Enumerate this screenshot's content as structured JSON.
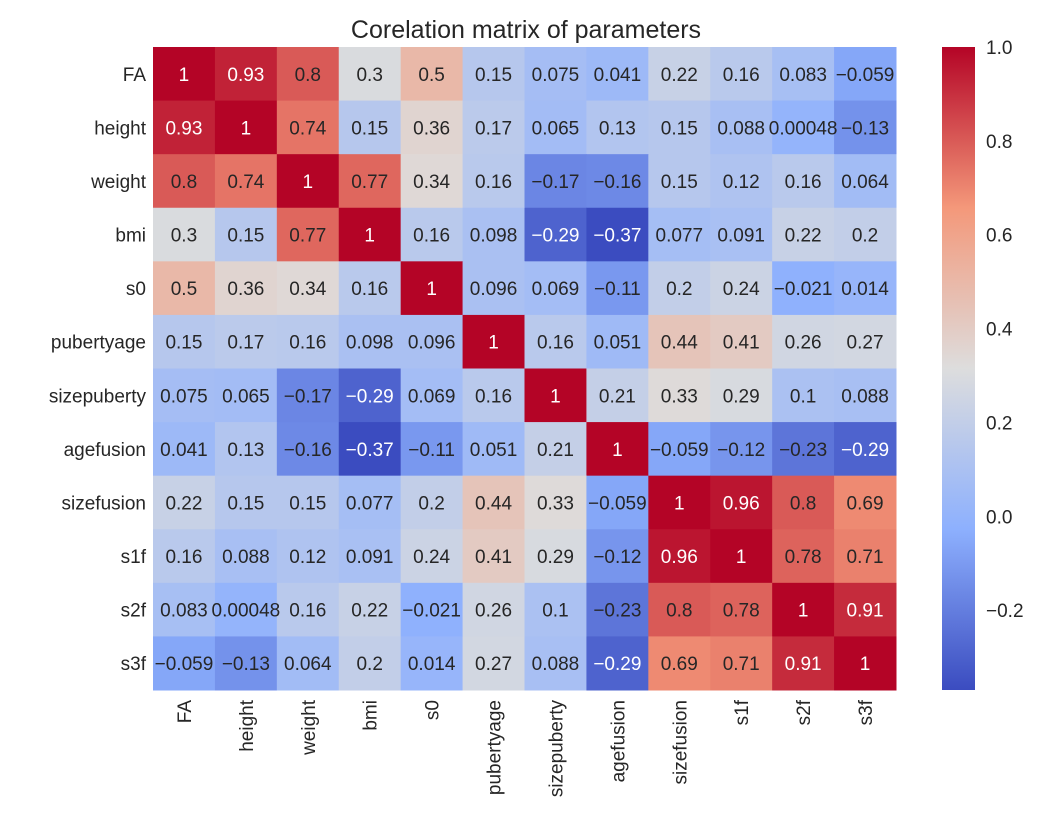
{
  "chart_data": {
    "type": "heatmap",
    "title": "Corelation matrix of parameters",
    "labels": [
      "FA",
      "height",
      "weight",
      "bmi",
      "s0",
      "pubertyage",
      "sizepuberty",
      "agefusion",
      "sizefusion",
      "s1f",
      "s2f",
      "s3f"
    ],
    "matrix": [
      [
        1,
        0.93,
        0.8,
        0.3,
        0.5,
        0.15,
        0.075,
        0.041,
        0.22,
        0.16,
        0.083,
        -0.059
      ],
      [
        0.93,
        1,
        0.74,
        0.15,
        0.36,
        0.17,
        0.065,
        0.13,
        0.15,
        0.088,
        0.00048,
        -0.13
      ],
      [
        0.8,
        0.74,
        1,
        0.77,
        0.34,
        0.16,
        -0.17,
        -0.16,
        0.15,
        0.12,
        0.16,
        0.064
      ],
      [
        0.3,
        0.15,
        0.77,
        1,
        0.16,
        0.098,
        -0.29,
        -0.37,
        0.077,
        0.091,
        0.22,
        0.2
      ],
      [
        0.5,
        0.36,
        0.34,
        0.16,
        1,
        0.096,
        0.069,
        -0.11,
        0.2,
        0.24,
        -0.021,
        0.014
      ],
      [
        0.15,
        0.17,
        0.16,
        0.098,
        0.096,
        1,
        0.16,
        0.051,
        0.44,
        0.41,
        0.26,
        0.27
      ],
      [
        0.075,
        0.065,
        -0.17,
        -0.29,
        0.069,
        0.16,
        1,
        0.21,
        0.33,
        0.29,
        0.1,
        0.088
      ],
      [
        0.041,
        0.13,
        -0.16,
        -0.37,
        -0.11,
        0.051,
        0.21,
        1,
        -0.059,
        -0.12,
        -0.23,
        -0.29
      ],
      [
        0.22,
        0.15,
        0.15,
        0.077,
        0.2,
        0.44,
        0.33,
        -0.059,
        1,
        0.96,
        0.8,
        0.69
      ],
      [
        0.16,
        0.088,
        0.12,
        0.091,
        0.24,
        0.41,
        0.29,
        -0.12,
        0.96,
        1,
        0.78,
        0.71
      ],
      [
        0.083,
        0.00048,
        0.16,
        0.22,
        -0.021,
        0.26,
        0.1,
        -0.23,
        0.8,
        0.78,
        1,
        0.91
      ],
      [
        -0.059,
        -0.13,
        0.064,
        0.2,
        0.014,
        0.27,
        0.088,
        -0.29,
        0.69,
        0.71,
        0.91,
        1
      ]
    ],
    "colormap": "coolwarm",
    "colorbar": {
      "min": -0.37,
      "max": 1.0,
      "ticks": [
        1.0,
        0.8,
        0.6,
        0.4,
        0.2,
        0.0,
        -0.2
      ],
      "tick_labels": [
        "1.0",
        "0.8",
        "0.6",
        "0.4",
        "0.2",
        "0.0",
        "−0.2"
      ]
    },
    "annotations": true,
    "legend": "colorbar-right"
  }
}
